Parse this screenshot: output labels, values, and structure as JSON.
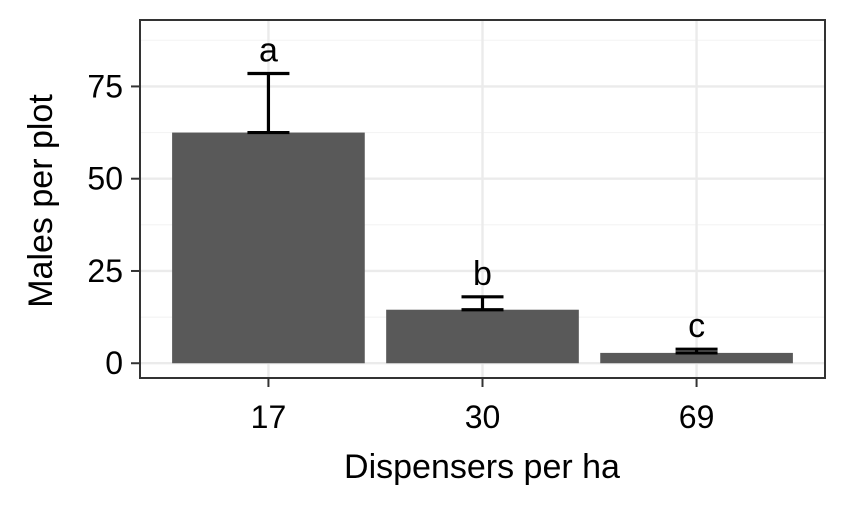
{
  "chart_data": {
    "type": "bar",
    "title": "",
    "xlabel": "Dispensers per ha",
    "ylabel": "Males per plot",
    "categories": [
      "17",
      "30",
      "69"
    ],
    "values": [
      62.5,
      14.5,
      2.8
    ],
    "error_upper": [
      78.5,
      18.0,
      3.8
    ],
    "error_lower": [
      62.5,
      14.5,
      2.8
    ],
    "group_letters": [
      "a",
      "b",
      "c"
    ],
    "ylim": [
      -4,
      93
    ],
    "yticks": [
      0,
      25,
      50,
      75
    ],
    "ytick_labels": [
      "0",
      "25",
      "50",
      "75"
    ],
    "grid": true,
    "legend": "none",
    "colors": {
      "bar": "#595959",
      "grid_major": "#ebebeb",
      "grid_minor": "#f4f4f4",
      "panel_border": "#333333",
      "error_bar": "#000000"
    }
  }
}
